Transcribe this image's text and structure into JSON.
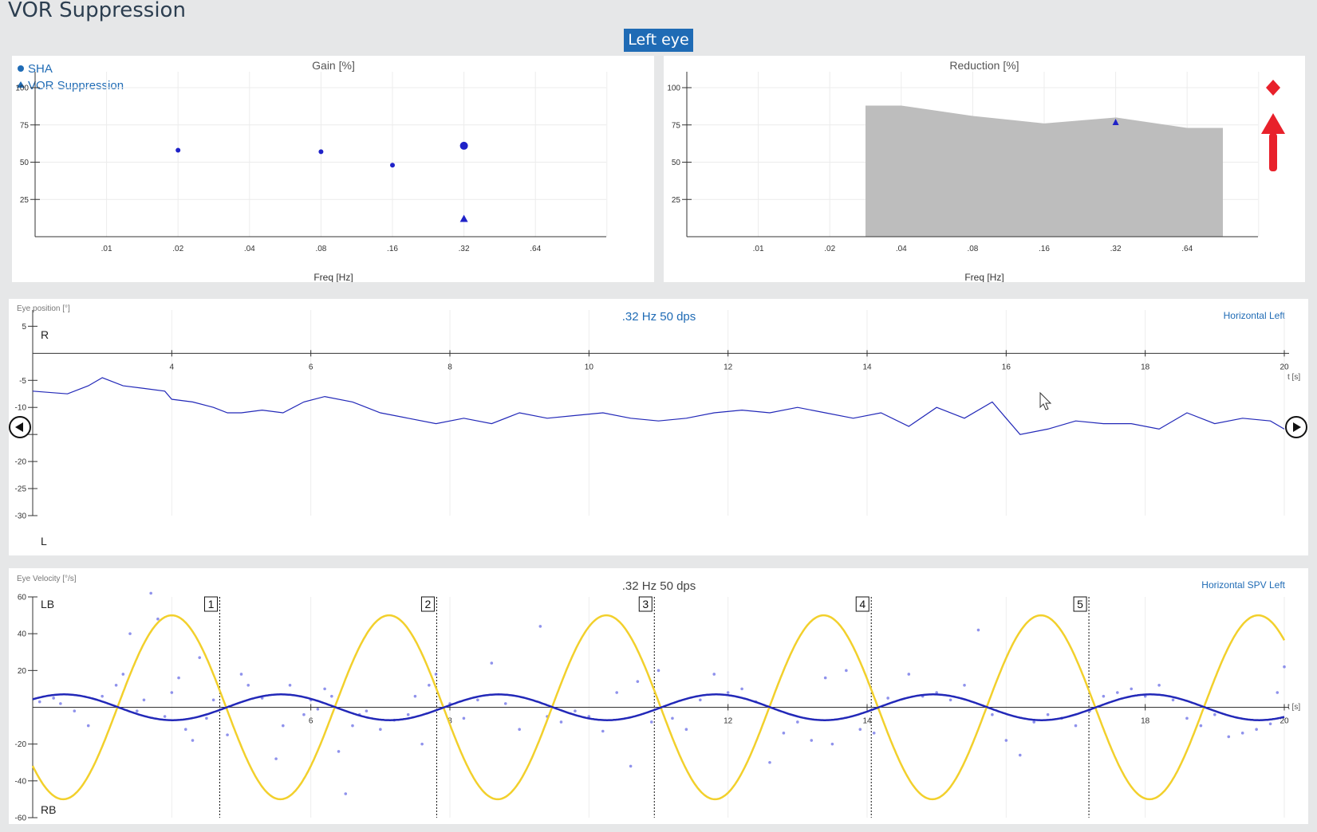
{
  "page": {
    "title": "VOR Suppression",
    "eye_button": "Left eye"
  },
  "icons": {
    "prev": "circle-arrow-left-icon",
    "next": "circle-arrow-right-icon",
    "annotation": "red-up-arrow-icon",
    "marker": "red-diamond-icon",
    "cursor": "mouse-pointer-icon"
  },
  "colors": {
    "sha": "#1f22c8",
    "vor": "#1f22c8",
    "reduction_fill": "#bdbdbd",
    "target_sine": "#f2d02c",
    "annotation": "#e8212b",
    "accent": "#1f6bb5"
  },
  "chart_data": [
    {
      "id": "gain",
      "type": "scatter",
      "title": "Gain [%]",
      "xlabel": "Freq [Hz]",
      "x_ticks": [
        ".01",
        ".02",
        ".04",
        ".08",
        ".16",
        ".32",
        ".64"
      ],
      "y_ticks": [
        "25",
        "50",
        "75",
        "100"
      ],
      "ylim": [
        0,
        100
      ],
      "legend": [
        {
          "name": "SHA",
          "marker": "circle"
        },
        {
          "name": "VOR Suppression",
          "marker": "triangle"
        }
      ],
      "legend_position": "top-left",
      "series": [
        {
          "name": "SHA",
          "marker": "circle",
          "points": [
            {
              "x": ".02",
              "y": 58
            },
            {
              "x": ".08",
              "y": 57
            },
            {
              "x": ".16",
              "y": 48
            },
            {
              "x": ".32",
              "y": 61,
              "highlight": true
            }
          ]
        },
        {
          "name": "VOR Suppression",
          "marker": "triangle",
          "points": [
            {
              "x": ".32",
              "y": 12
            }
          ]
        }
      ]
    },
    {
      "id": "reduction",
      "type": "area",
      "title": "Reduction [%]",
      "xlabel": "Freq [Hz]",
      "x_ticks": [
        ".01",
        ".02",
        ".04",
        ".08",
        ".16",
        ".32",
        ".64"
      ],
      "y_ticks": [
        "25",
        "50",
        "75",
        "100"
      ],
      "ylim": [
        0,
        100
      ],
      "normal_range": [
        {
          "x": 2.5,
          "y": 88
        },
        {
          "x": 3,
          "y": 88
        },
        {
          "x": 4,
          "y": 81
        },
        {
          "x": 5,
          "y": 76
        },
        {
          "x": 6,
          "y": 80
        },
        {
          "x": 7,
          "y": 73
        },
        {
          "x": 7.5,
          "y": 73
        }
      ],
      "points": [
        {
          "x": ".32",
          "y": 77,
          "marker": "triangle"
        }
      ]
    },
    {
      "id": "eye-position",
      "type": "line",
      "ylabel": "Eye position [°]",
      "title": ".32 Hz 50 dps",
      "channel": "Horizontal Left",
      "xlabel": "t [s]",
      "xlim": [
        2,
        20
      ],
      "ylim": [
        -30,
        8
      ],
      "x_ticks": [
        "4",
        "6",
        "8",
        "10",
        "12",
        "14",
        "16",
        "18",
        "20"
      ],
      "y_ticks": [
        "5",
        "-5",
        "-10",
        "-15",
        "-20",
        "-25",
        "-30"
      ],
      "top_label": "R",
      "bottom_label": "L",
      "series": [
        {
          "x": [
            2.0,
            2.5,
            2.8,
            3.0,
            3.3,
            3.6,
            3.9,
            4.0,
            4.3,
            4.6,
            4.8,
            5.0,
            5.3,
            5.6,
            5.9,
            6.2,
            6.6,
            7.0,
            7.4,
            7.8,
            8.2,
            8.6,
            9.0,
            9.4,
            9.8,
            10.2,
            10.6,
            11.0,
            11.4,
            11.8,
            12.2,
            12.6,
            13.0,
            13.4,
            13.8,
            14.2,
            14.6,
            15.0,
            15.4,
            15.8,
            16.0,
            16.2,
            16.6,
            17.0,
            17.4,
            17.8,
            18.2,
            18.6,
            19.0,
            19.4,
            19.8,
            20.0
          ],
          "y": [
            -7,
            -7.5,
            -6,
            -4.5,
            -6,
            -6.5,
            -7,
            -8.5,
            -9,
            -10,
            -11,
            -11,
            -10.5,
            -11,
            -9,
            -8,
            -9,
            -11,
            -12,
            -13,
            -12,
            -13,
            -11,
            -12,
            -11.5,
            -11,
            -12,
            -12.5,
            -12,
            -11,
            -10.5,
            -11,
            -10,
            -11,
            -12,
            -11,
            -13.5,
            -10,
            -12,
            -9,
            -12,
            -15,
            -14,
            -12.5,
            -13,
            -13,
            -14,
            -11,
            -13,
            -12,
            -12.5,
            -14
          ]
        }
      ]
    },
    {
      "id": "eye-velocity",
      "type": "line",
      "ylabel": "Eye Velocity [°/s]",
      "title": ".32 Hz 50 dps",
      "channel": "Horizontal SPV Left",
      "xlabel": "t [s]",
      "xlim": [
        2,
        20
      ],
      "ylim": [
        -60,
        60
      ],
      "x_ticks": [
        "6",
        "8",
        "12",
        "14",
        "18",
        "20"
      ],
      "y_ticks": [
        "60",
        "40",
        "20",
        "-20",
        "-40",
        "-60"
      ],
      "top_label": "LB",
      "bottom_label": "RB",
      "cycle_markers": [
        {
          "label": "1",
          "t": 4.69
        },
        {
          "label": "2",
          "t": 7.81
        },
        {
          "label": "3",
          "t": 10.94
        },
        {
          "label": "4",
          "t": 14.06
        },
        {
          "label": "5",
          "t": 17.19
        }
      ],
      "series": [
        {
          "name": "target",
          "kind": "sine",
          "amplitude": 50,
          "frequency_hz": 0.32,
          "peak_t": 4
        },
        {
          "name": "fit",
          "kind": "sine",
          "amplitude": 7,
          "frequency_hz": 0.32,
          "peak_t": 2.45
        }
      ],
      "scatter_points": [
        {
          "x": 2.1,
          "y": 3
        },
        {
          "x": 2.3,
          "y": 5
        },
        {
          "x": 2.4,
          "y": 2
        },
        {
          "x": 2.6,
          "y": -2
        },
        {
          "x": 2.8,
          "y": -10
        },
        {
          "x": 3.0,
          "y": 6
        },
        {
          "x": 3.2,
          "y": 12
        },
        {
          "x": 3.3,
          "y": 18
        },
        {
          "x": 3.4,
          "y": 40
        },
        {
          "x": 3.5,
          "y": -2
        },
        {
          "x": 3.6,
          "y": 4
        },
        {
          "x": 3.7,
          "y": 62
        },
        {
          "x": 3.8,
          "y": 48
        },
        {
          "x": 3.9,
          "y": -5
        },
        {
          "x": 4.0,
          "y": 8
        },
        {
          "x": 4.1,
          "y": 16
        },
        {
          "x": 4.2,
          "y": -12
        },
        {
          "x": 4.3,
          "y": -18
        },
        {
          "x": 4.4,
          "y": 27
        },
        {
          "x": 4.5,
          "y": -6
        },
        {
          "x": 4.6,
          "y": 4
        },
        {
          "x": 4.8,
          "y": -15
        },
        {
          "x": 5.0,
          "y": 18
        },
        {
          "x": 5.1,
          "y": 12
        },
        {
          "x": 5.3,
          "y": 5
        },
        {
          "x": 5.5,
          "y": -28
        },
        {
          "x": 5.6,
          "y": -10
        },
        {
          "x": 5.7,
          "y": 12
        },
        {
          "x": 5.9,
          "y": -4
        },
        {
          "x": 6.0,
          "y": 4
        },
        {
          "x": 6.1,
          "y": -1
        },
        {
          "x": 6.2,
          "y": 10
        },
        {
          "x": 6.3,
          "y": 6
        },
        {
          "x": 6.4,
          "y": -24
        },
        {
          "x": 6.5,
          "y": -47
        },
        {
          "x": 6.6,
          "y": -10
        },
        {
          "x": 6.7,
          "y": -4
        },
        {
          "x": 6.8,
          "y": -2
        },
        {
          "x": 7.0,
          "y": -12
        },
        {
          "x": 7.2,
          "y": -7
        },
        {
          "x": 7.4,
          "y": -4
        },
        {
          "x": 7.5,
          "y": 6
        },
        {
          "x": 7.6,
          "y": -20
        },
        {
          "x": 7.7,
          "y": 12
        },
        {
          "x": 7.8,
          "y": 18
        },
        {
          "x": 8.0,
          "y": 2
        },
        {
          "x": 8.2,
          "y": -6
        },
        {
          "x": 8.4,
          "y": 4
        },
        {
          "x": 8.6,
          "y": 24
        },
        {
          "x": 8.8,
          "y": 2
        },
        {
          "x": 9.0,
          "y": -12
        },
        {
          "x": 9.3,
          "y": 44
        },
        {
          "x": 9.4,
          "y": -5
        },
        {
          "x": 9.6,
          "y": -8
        },
        {
          "x": 9.8,
          "y": -2
        },
        {
          "x": 10.0,
          "y": -5
        },
        {
          "x": 10.2,
          "y": -13
        },
        {
          "x": 10.4,
          "y": 8
        },
        {
          "x": 10.6,
          "y": -32
        },
        {
          "x": 10.7,
          "y": 14
        },
        {
          "x": 10.9,
          "y": -8
        },
        {
          "x": 11.0,
          "y": 20
        },
        {
          "x": 11.2,
          "y": -6
        },
        {
          "x": 11.4,
          "y": -12
        },
        {
          "x": 11.6,
          "y": 4
        },
        {
          "x": 11.8,
          "y": 18
        },
        {
          "x": 12.0,
          "y": 8
        },
        {
          "x": 12.2,
          "y": 10
        },
        {
          "x": 12.4,
          "y": 3
        },
        {
          "x": 12.6,
          "y": -30
        },
        {
          "x": 12.8,
          "y": -14
        },
        {
          "x": 13.0,
          "y": -8
        },
        {
          "x": 13.2,
          "y": -18
        },
        {
          "x": 13.4,
          "y": 16
        },
        {
          "x": 13.5,
          "y": -20
        },
        {
          "x": 13.7,
          "y": 20
        },
        {
          "x": 13.9,
          "y": -12
        },
        {
          "x": 14.1,
          "y": -14
        },
        {
          "x": 14.3,
          "y": 5
        },
        {
          "x": 14.6,
          "y": 18
        },
        {
          "x": 14.8,
          "y": 6
        },
        {
          "x": 15.0,
          "y": 8
        },
        {
          "x": 15.2,
          "y": 4
        },
        {
          "x": 15.4,
          "y": 12
        },
        {
          "x": 15.6,
          "y": 42
        },
        {
          "x": 15.8,
          "y": -4
        },
        {
          "x": 16.0,
          "y": -18
        },
        {
          "x": 16.2,
          "y": -26
        },
        {
          "x": 16.4,
          "y": -8
        },
        {
          "x": 16.6,
          "y": -4
        },
        {
          "x": 16.8,
          "y": -6
        },
        {
          "x": 17.0,
          "y": -10
        },
        {
          "x": 17.2,
          "y": -2
        },
        {
          "x": 17.4,
          "y": 6
        },
        {
          "x": 17.6,
          "y": 8
        },
        {
          "x": 17.8,
          "y": 10
        },
        {
          "x": 18.0,
          "y": 6
        },
        {
          "x": 18.2,
          "y": 12
        },
        {
          "x": 18.4,
          "y": 4
        },
        {
          "x": 18.6,
          "y": -6
        },
        {
          "x": 18.8,
          "y": -10
        },
        {
          "x": 19.0,
          "y": -4
        },
        {
          "x": 19.2,
          "y": -16
        },
        {
          "x": 19.4,
          "y": -14
        },
        {
          "x": 19.6,
          "y": -12
        },
        {
          "x": 19.8,
          "y": -9
        },
        {
          "x": 19.9,
          "y": 8
        },
        {
          "x": 20.0,
          "y": 22
        }
      ]
    }
  ]
}
